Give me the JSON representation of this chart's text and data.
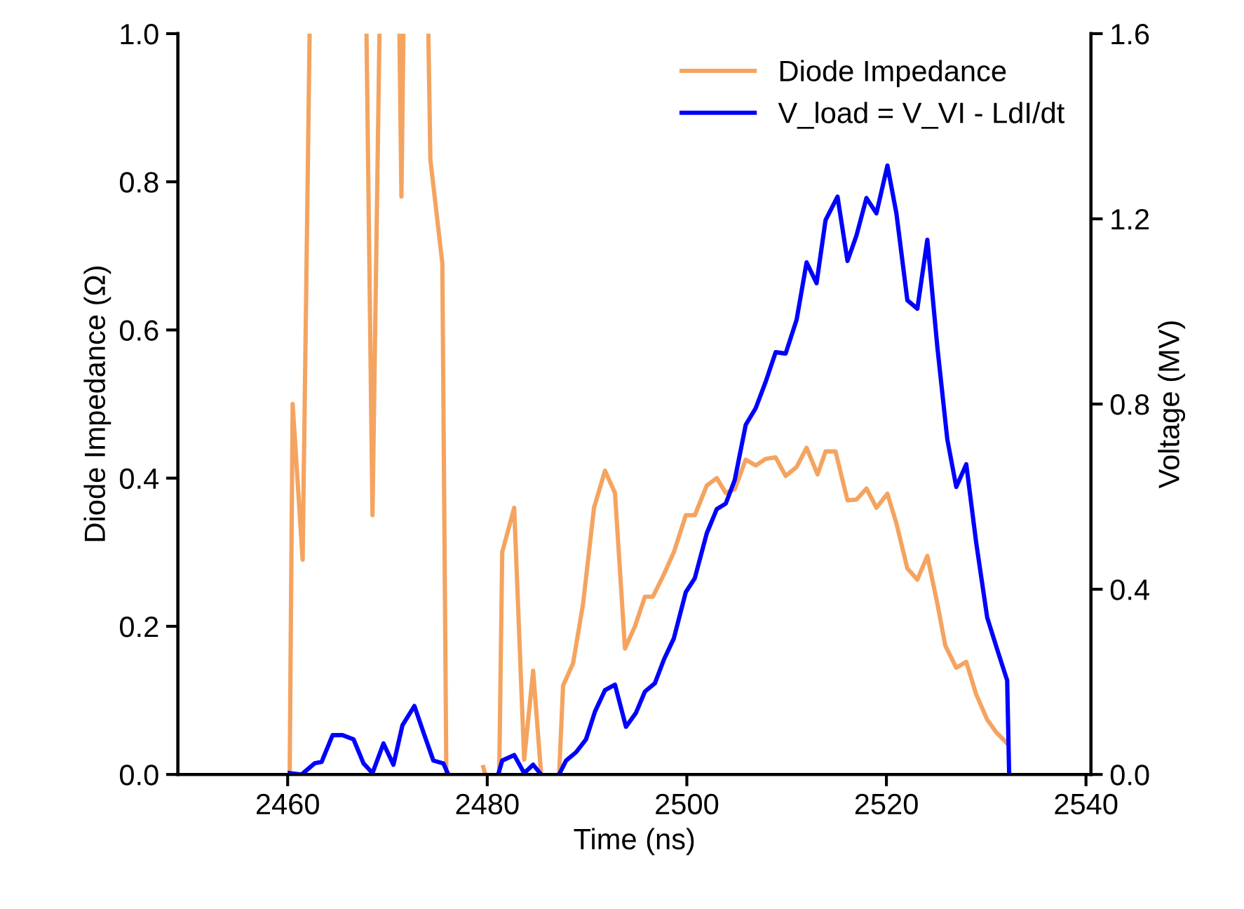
{
  "chart_data": {
    "type": "line",
    "xlabel": "Time (ns)",
    "ylabel": "Diode Impedance (Ω)",
    "y2label": "Voltage (MV)",
    "xlim": [
      2449,
      2540.5
    ],
    "xticks": [
      2460,
      2480,
      2500,
      2520,
      2540
    ],
    "ylim": [
      0,
      1.0
    ],
    "yticks": [
      {
        "value": 0,
        "label": "0.0"
      },
      0.2,
      0.4,
      0.6,
      0.8,
      {
        "value": 1.0,
        "label": "1.0"
      }
    ],
    "y2lim": [
      0,
      1.6
    ],
    "y2ticks": [
      {
        "value": 0,
        "label": "0.0"
      },
      0.4,
      0.8,
      1.2,
      1.6
    ],
    "legend": "top right",
    "grid": false,
    "line_style": "solid",
    "marker": "none",
    "series": [
      {
        "name": "Diode Impedance",
        "color": "#f4a460",
        "x": [
          2460.2,
          2460.5,
          2461.5,
          2462.2,
          2465.0,
          2467.9,
          2468.5,
          2469.2,
          2470.2,
          2471.2,
          2471.4,
          2471.6,
          2472.8,
          2474.1,
          2474.3,
          2475.5,
          2475.9,
          2477.5,
          2479.6,
          2479.8,
          2480.5,
          2481.2,
          2481.5,
          2482.7,
          2483.7,
          2484.6,
          2485.4,
          2486.3,
          2487.2,
          2487.6,
          2488.6,
          2489.6,
          2490.7,
          2491.8,
          2492.8,
          2493.8,
          2494.8,
          2495.8,
          2496.6,
          2497.7,
          2498.7,
          2499.9,
          2500.8,
          2502.0,
          2503.0,
          2503.9,
          2504.8,
          2505.9,
          2506.9,
          2507.9,
          2508.9,
          2509.9,
          2511.0,
          2512.0,
          2513.1,
          2513.9,
          2514.9,
          2516.1,
          2517.0,
          2518.0,
          2519.0,
          2520.1,
          2521.0,
          2522.1,
          2523.1,
          2524.1,
          2525.1,
          2525.9,
          2527.0,
          2528.0,
          2529.0,
          2530.1,
          2531.0,
          2532.1
        ],
        "values": [
          0.0,
          0.5,
          0.29,
          1.0,
          null,
          1.0,
          0.35,
          1.0,
          null,
          1.0,
          0.78,
          1.0,
          null,
          1.0,
          0.83,
          0.69,
          0.0,
          null,
          0.01,
          0.0,
          null,
          0.0,
          0.3,
          0.36,
          0.02,
          0.14,
          0.0,
          null,
          0.0,
          0.12,
          0.15,
          0.23,
          0.36,
          0.41,
          0.38,
          0.17,
          0.2,
          0.24,
          0.24,
          0.27,
          0.3,
          0.35,
          0.35,
          0.39,
          0.4,
          0.38,
          0.385,
          0.425,
          0.417,
          0.426,
          0.428,
          0.403,
          0.415,
          0.441,
          0.405,
          0.436,
          0.436,
          0.37,
          0.371,
          0.386,
          0.36,
          0.379,
          0.339,
          0.278,
          0.263,
          0.295,
          0.231,
          0.174,
          0.144,
          0.152,
          0.108,
          0.074,
          0.057,
          0.042
        ]
      },
      {
        "name": "V_load = V_VI - LdI/dt",
        "color": "#0000ff",
        "axis": "y2",
        "x": [
          2460.2,
          2461.4,
          2462.7,
          2463.4,
          2464.5,
          2465.5,
          2466.6,
          2467.6,
          2468.5,
          2469.6,
          2470.6,
          2471.5,
          2472.7,
          2473.7,
          2474.6,
          2475.6,
          2476.1,
          2478.5,
          2481.1,
          2481.5,
          2482.7,
          2483.7,
          2484.6,
          2485.4,
          2486.3,
          2487.2,
          2487.9,
          2488.9,
          2489.9,
          2490.8,
          2491.8,
          2492.8,
          2493.9,
          2494.9,
          2495.8,
          2496.8,
          2497.7,
          2498.7,
          2499.9,
          2500.8,
          2502.0,
          2503.0,
          2503.9,
          2504.8,
          2505.9,
          2506.9,
          2507.9,
          2508.9,
          2509.9,
          2511.0,
          2512.0,
          2513.0,
          2513.9,
          2515.1,
          2516.1,
          2517.0,
          2518.0,
          2519.0,
          2520.1,
          2521.0,
          2522.1,
          2523.1,
          2524.1,
          2525.1,
          2526.1,
          2527.0,
          2528.0,
          2529.0,
          2530.1,
          2531.1,
          2532.1,
          2532.3
        ],
        "values": [
          0.003,
          0.0,
          0.024,
          0.027,
          0.085,
          0.085,
          0.076,
          0.024,
          0.003,
          0.067,
          0.021,
          0.106,
          0.148,
          0.085,
          0.03,
          0.024,
          0.0,
          null,
          0.0,
          0.03,
          0.042,
          0.003,
          0.021,
          0.0,
          null,
          0.0,
          0.03,
          0.048,
          0.076,
          0.136,
          0.182,
          0.194,
          0.103,
          0.133,
          0.179,
          0.197,
          0.248,
          0.294,
          0.394,
          0.424,
          0.521,
          0.573,
          0.585,
          0.636,
          0.755,
          0.791,
          0.848,
          0.912,
          0.909,
          0.982,
          1.106,
          1.061,
          1.197,
          1.248,
          1.109,
          1.164,
          1.245,
          1.212,
          1.315,
          1.212,
          1.024,
          1.006,
          1.155,
          0.924,
          0.724,
          0.621,
          0.67,
          0.5,
          0.339,
          0.27,
          0.203,
          0.0
        ]
      }
    ]
  }
}
